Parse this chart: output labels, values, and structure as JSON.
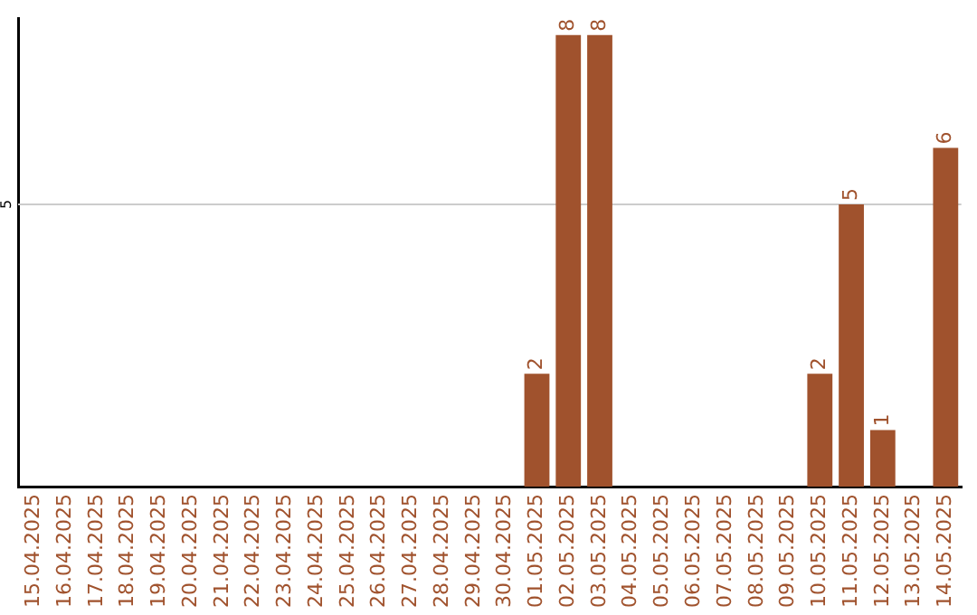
{
  "chart_data": {
    "type": "bar",
    "categories": [
      "15.04.2025",
      "16.04.2025",
      "17.04.2025",
      "18.04.2025",
      "19.04.2025",
      "20.04.2025",
      "21.04.2025",
      "22.04.2025",
      "23.04.2025",
      "24.04.2025",
      "25.04.2025",
      "26.04.2025",
      "27.04.2025",
      "28.04.2025",
      "29.04.2025",
      "30.04.2025",
      "01.05.2025",
      "02.05.2025",
      "03.05.2025",
      "04.05.2025",
      "05.05.2025",
      "06.05.2025",
      "07.05.2025",
      "08.05.2025",
      "09.05.2025",
      "10.05.2025",
      "11.05.2025",
      "12.05.2025",
      "13.05.2025",
      "14.05.2025"
    ],
    "values": [
      null,
      null,
      null,
      null,
      null,
      null,
      null,
      null,
      null,
      null,
      null,
      null,
      null,
      null,
      null,
      null,
      2,
      8,
      8,
      null,
      null,
      null,
      null,
      null,
      null,
      2,
      5,
      1,
      null,
      6
    ],
    "value_labels": [
      null,
      null,
      null,
      null,
      null,
      null,
      null,
      null,
      null,
      null,
      null,
      null,
      null,
      null,
      null,
      null,
      "2",
      "8",
      "8",
      null,
      null,
      null,
      null,
      null,
      null,
      "2",
      "5",
      "1",
      null,
      "6"
    ],
    "color": "#a0522d",
    "ylim": [
      0,
      8.3
    ],
    "ref_lines": [
      {
        "axis": "y",
        "value": 5,
        "label": "5",
        "color": "#cccccc"
      }
    ],
    "legend": false
  }
}
